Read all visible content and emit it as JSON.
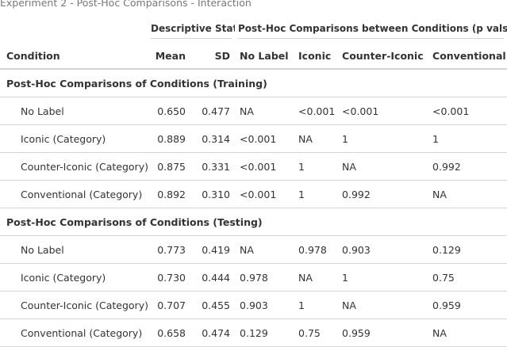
{
  "caption": "Experiment 2 - Post-Hoc Comparisons - Interaction",
  "spanners": {
    "descriptive": "Descriptive Stats",
    "posthoc": "Post-Hoc Comparisons between Conditions (p vals)"
  },
  "columns": [
    "Condition",
    "Mean",
    "SD",
    "No Label",
    "Iconic",
    "Counter-Iconic",
    "Conventional"
  ],
  "groups": [
    {
      "title": "Post-Hoc Comparisons of Conditions (Training)",
      "rows": [
        [
          "No Label",
          "0.650",
          "0.477",
          "NA",
          "<0.001",
          "<0.001",
          "<0.001"
        ],
        [
          "Iconic (Category)",
          "0.889",
          "0.314",
          "<0.001",
          "NA",
          "1",
          "1"
        ],
        [
          "Counter-Iconic (Category)",
          "0.875",
          "0.331",
          "<0.001",
          "1",
          "NA",
          "0.992"
        ],
        [
          "Conventional (Category)",
          "0.892",
          "0.310",
          "<0.001",
          "1",
          "0.992",
          "NA"
        ]
      ]
    },
    {
      "title": "Post-Hoc Comparisons of Conditions (Testing)",
      "rows": [
        [
          "No Label",
          "0.773",
          "0.419",
          "NA",
          "0.978",
          "0.903",
          "0.129"
        ],
        [
          "Iconic (Category)",
          "0.730",
          "0.444",
          "0.978",
          "NA",
          "1",
          "0.75"
        ],
        [
          "Counter-Iconic (Category)",
          "0.707",
          "0.455",
          "0.903",
          "1",
          "NA",
          "0.959"
        ],
        [
          "Conventional (Category)",
          "0.658",
          "0.474",
          "0.129",
          "0.75",
          "0.959",
          "NA"
        ]
      ]
    }
  ]
}
